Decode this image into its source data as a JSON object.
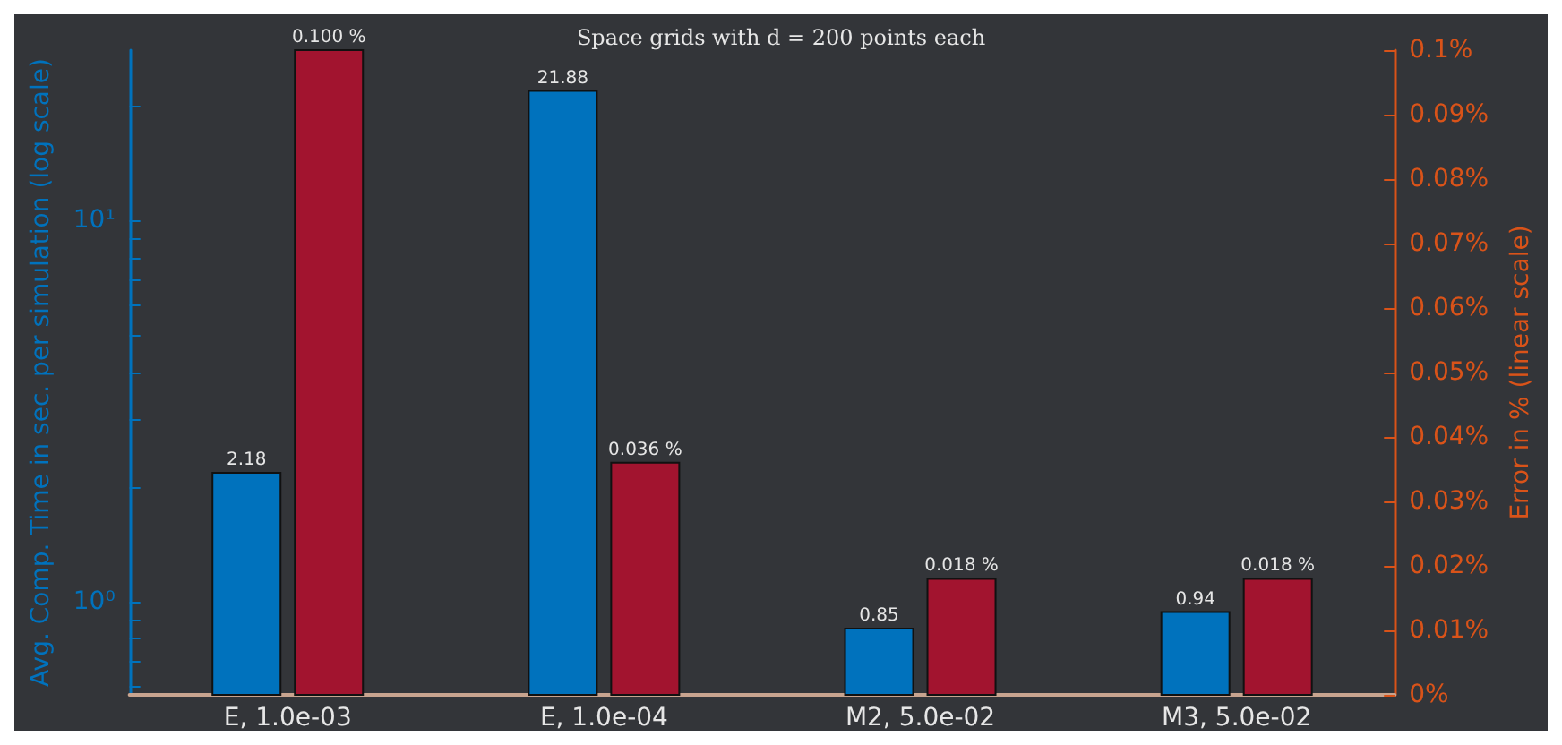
{
  "chart_data": {
    "type": "bar",
    "title": "Space grids with d = 200 points each",
    "ylabel": "Avg. Comp. Time in sec. per simulation (log scale)",
    "y2label": "Error in % (linear scale)",
    "categories": [
      "E, 1.0e-03",
      "E, 1.0e-04",
      "M2, 5.0e-02",
      "M3, 5.0e-02"
    ],
    "series": [
      {
        "color": "#0072bd",
        "values": [
          2.18,
          21.88,
          0.85,
          0.94
        ],
        "value_labels": [
          "2.18",
          "21.88",
          "0.85",
          "0.94"
        ]
      },
      {
        "color": "#a2142f",
        "axis": "y2",
        "values": [
          0.1,
          0.036,
          0.018,
          0.018
        ],
        "value_labels": [
          "0.100 %",
          "0.036 %",
          "0.018 %",
          "0.018 %"
        ]
      }
    ],
    "log": "y",
    "ylim": [
      0.57,
      28
    ],
    "yticks": [
      {
        "value": 0.6,
        "label": null
      },
      {
        "value": 0.7,
        "label": null
      },
      {
        "value": 0.8,
        "label": null
      },
      {
        "value": 0.9,
        "label": null
      },
      {
        "value": 1,
        "label": "10⁰"
      },
      {
        "value": 2,
        "label": null
      },
      {
        "value": 3,
        "label": null
      },
      {
        "value": 4,
        "label": null
      },
      {
        "value": 5,
        "label": null
      },
      {
        "value": 6,
        "label": null
      },
      {
        "value": 7,
        "label": null
      },
      {
        "value": 8,
        "label": null
      },
      {
        "value": 9,
        "label": null
      },
      {
        "value": 10,
        "label": "10¹"
      },
      {
        "value": 20,
        "label": null
      }
    ],
    "y2lim": [
      0,
      0.1
    ],
    "y2ticks": [
      {
        "value": 0,
        "label": "0%"
      },
      {
        "value": 0.01,
        "label": "0.01%"
      },
      {
        "value": 0.02,
        "label": "0.02%"
      },
      {
        "value": 0.03,
        "label": "0.03%"
      },
      {
        "value": 0.04,
        "label": "0.04%"
      },
      {
        "value": 0.05,
        "label": "0.05%"
      },
      {
        "value": 0.06,
        "label": "0.06%"
      },
      {
        "value": 0.07,
        "label": "0.07%"
      },
      {
        "value": 0.08,
        "label": "0.08%"
      },
      {
        "value": 0.09,
        "label": "0.09%"
      },
      {
        "value": 0.1,
        "label": "0.1%"
      }
    ],
    "grid": false
  }
}
